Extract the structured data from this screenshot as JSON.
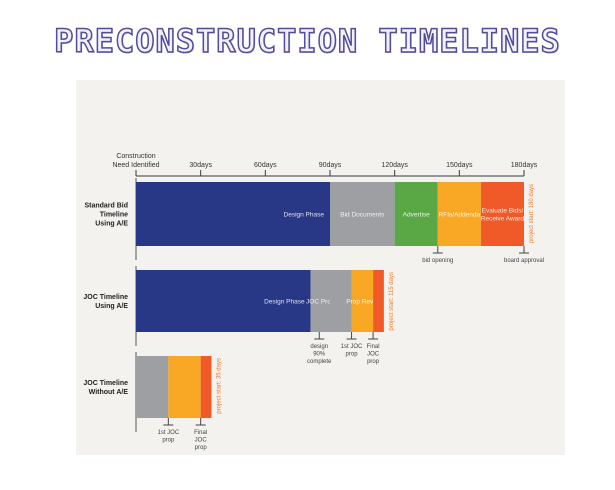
{
  "page": {
    "title": "PRECONSTRUCTION TIMELINES"
  },
  "colors": {
    "design": "#283786",
    "gray": "#9d9fa2",
    "green": "#5aa845",
    "yellow": "#f9a825",
    "orange": "#ef5a28",
    "panel": "#f3f2ef",
    "side_note": "#ef7b29"
  },
  "chart_data": {
    "type": "bar",
    "orientation": "horizontal-timeline",
    "x_unit": "days",
    "xlim": [
      0,
      180
    ],
    "ticks": [
      {
        "value": 0,
        "label": "Construction\nNeed Identified"
      },
      {
        "value": 30,
        "label": "30days"
      },
      {
        "value": 60,
        "label": "60days"
      },
      {
        "value": 90,
        "label": "90days"
      },
      {
        "value": 120,
        "label": "120days"
      },
      {
        "value": 150,
        "label": "150days"
      },
      {
        "value": 180,
        "label": "180days"
      }
    ],
    "rows": [
      {
        "name": "Standard Bid\nTimeline\nUsing A/E",
        "total_days": 180,
        "side_note": "project start: 180 days",
        "segments": [
          {
            "label": "Design Phase",
            "start": 0,
            "end": 90,
            "color": "design",
            "label_pos": "right"
          },
          {
            "label": "Bid Documents",
            "start": 90,
            "end": 120,
            "color": "gray"
          },
          {
            "label": "Advertise",
            "start": 120,
            "end": 140,
            "color": "green"
          },
          {
            "label": "RFIs/Addenda",
            "start": 140,
            "end": 160,
            "color": "yellow"
          },
          {
            "label": "Evaluate Bids/\nReceive Award",
            "start": 160,
            "end": 180,
            "color": "orange"
          }
        ],
        "milestones": [
          {
            "day": 140,
            "label": "bid opening"
          },
          {
            "day": 180,
            "label": "board approval"
          }
        ]
      },
      {
        "name": "JOC Timeline\nUsing A/E",
        "total_days": 115,
        "side_note": "project start: 115 days",
        "segments": [
          {
            "label": "Design Phase",
            "start": 0,
            "end": 81,
            "color": "design",
            "label_pos": "right"
          },
          {
            "label": "JOC Prop",
            "start": 81,
            "end": 90,
            "color": "gray"
          },
          {
            "label": "",
            "start": 90,
            "end": 100,
            "color": "gray"
          },
          {
            "label": "Prop Revie",
            "start": 100,
            "end": 110,
            "color": "yellow"
          },
          {
            "label": "",
            "start": 110,
            "end": 115,
            "color": "orange"
          }
        ],
        "milestones": [
          {
            "day": 85,
            "label": "design\n90%\ncomplete"
          },
          {
            "day": 100,
            "label": "1st JOC\nprop"
          },
          {
            "day": 110,
            "label": "Final\nJOC\nprop"
          }
        ]
      },
      {
        "name": "JOC Timeline\nWithout A/E",
        "total_days": 35,
        "side_note": "project start: 35 days",
        "segments": [
          {
            "label": "",
            "start": 0,
            "end": 15,
            "color": "gray"
          },
          {
            "label": "",
            "start": 15,
            "end": 30,
            "color": "yellow"
          },
          {
            "label": "",
            "start": 30,
            "end": 35,
            "color": "orange"
          }
        ],
        "milestones": [
          {
            "day": 15,
            "label": "1st JOC\nprop"
          },
          {
            "day": 30,
            "label": "Final\nJOC\nprop"
          }
        ]
      }
    ]
  }
}
